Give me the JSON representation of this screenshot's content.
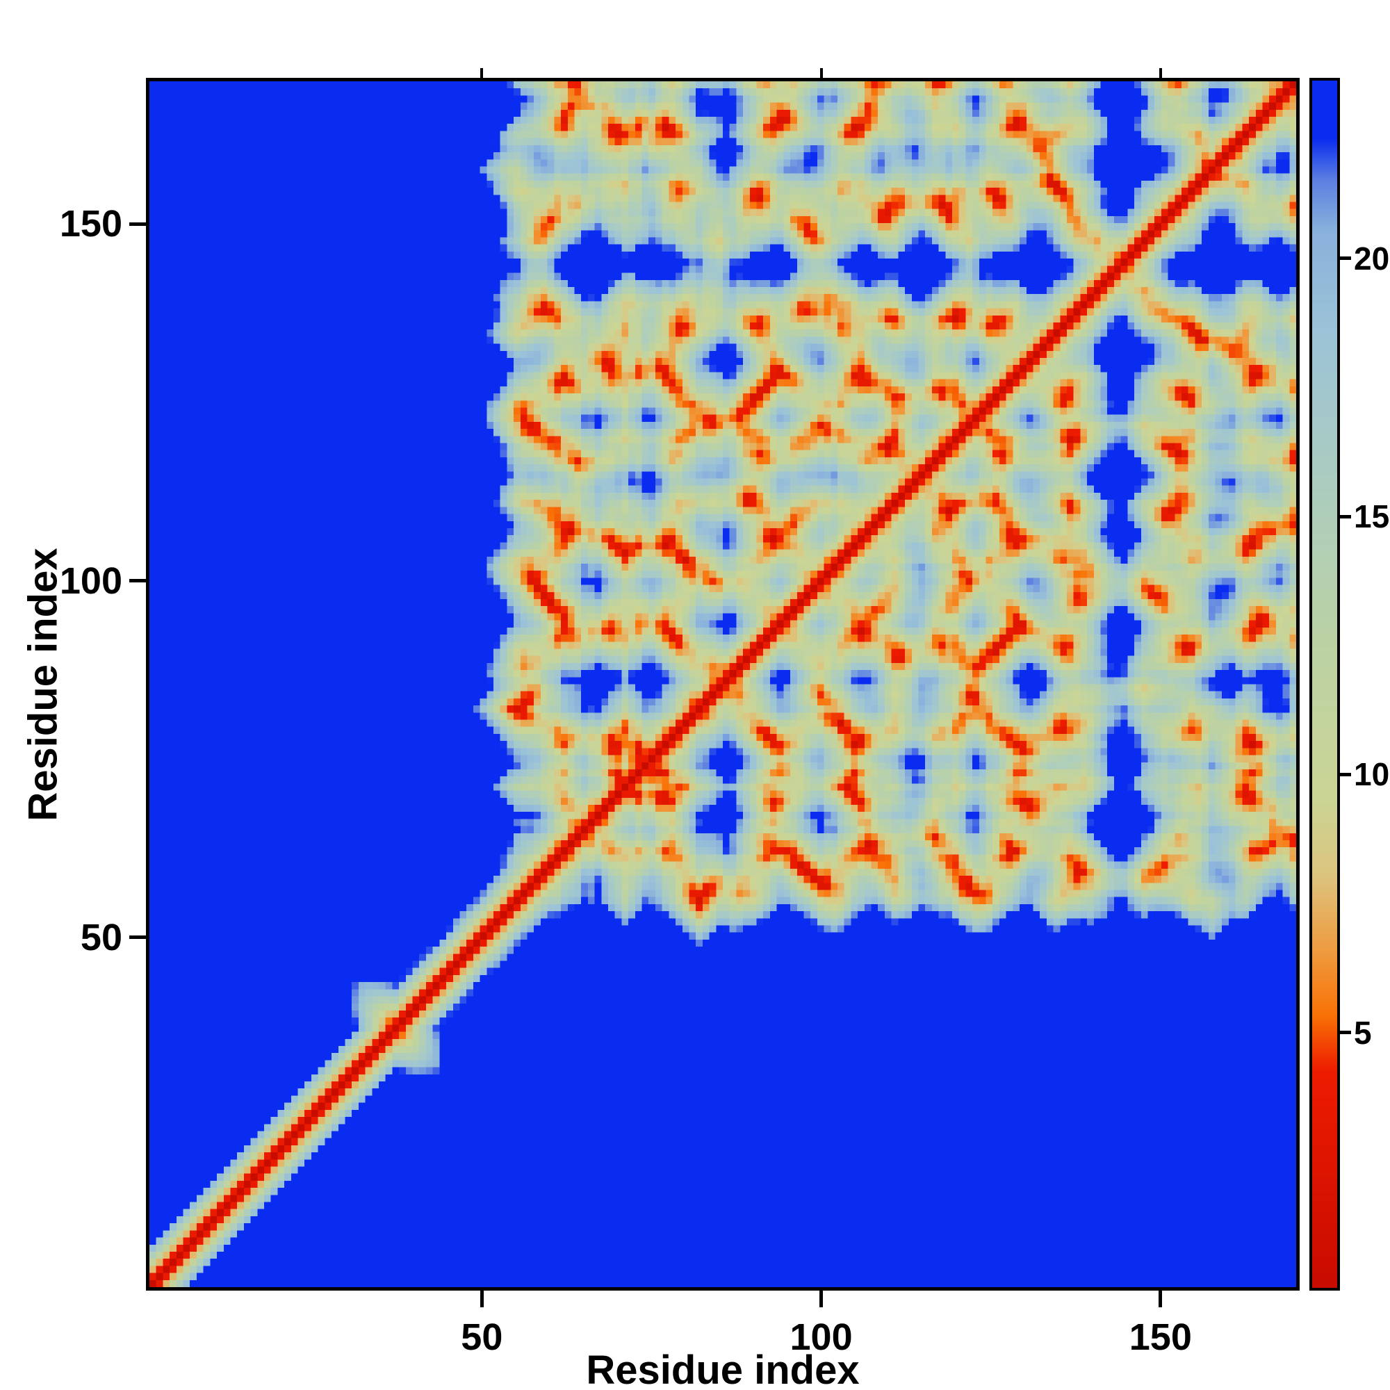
{
  "chart_data": {
    "type": "heatmap",
    "title": "",
    "xlabel": "Residue index",
    "ylabel": "Residue index",
    "x_range": [
      1,
      170
    ],
    "y_range": [
      1,
      170
    ],
    "x_ticks": [
      50,
      100,
      150
    ],
    "y_ticks": [
      50,
      100,
      150
    ],
    "grid": false,
    "n_residues": 170,
    "matrix_description": "Symmetric pairwise residue-residue distance map: red along the diagonal (short distances), orange/green for mid-range contacts, deep blue where distances reach the color-scale cap; the first ~36 residues form an extended tail that is distant from the globular domain (solid blue band at low indices).",
    "colorbar": {
      "position": "right",
      "orientation": "vertical",
      "vmin": 0,
      "vmax": 23.5,
      "ticks": [
        5,
        10,
        15,
        20
      ]
    },
    "colormap_stops": [
      {
        "v": 0.0,
        "color": "#c90c00"
      },
      {
        "v": 4.2,
        "color": "#ee1c00"
      },
      {
        "v": 5.3,
        "color": "#f97207"
      },
      {
        "v": 6.5,
        "color": "#f09a3e"
      },
      {
        "v": 8.0,
        "color": "#ddc47e"
      },
      {
        "v": 9.5,
        "color": "#cbd595"
      },
      {
        "v": 12.5,
        "color": "#bcd2a4"
      },
      {
        "v": 15.5,
        "color": "#adcdbe"
      },
      {
        "v": 18.5,
        "color": "#9dc4d6"
      },
      {
        "v": 20.6,
        "color": "#8ab2dc"
      },
      {
        "v": 21.6,
        "color": "#5c7fe2"
      },
      {
        "v": 22.4,
        "color": "#0a2cf0"
      },
      {
        "v": 23.5,
        "color": "#0a2cf0"
      }
    ],
    "synthesis": {
      "seed": 9,
      "step_length": 3.8,
      "extended_tail_residues": 36,
      "tail_turn": 0.14,
      "globule_turn": 1.0,
      "confinement": 0.05,
      "start": [
        128,
        6,
        -4
      ],
      "start_dir": [
        -1,
        0.05,
        0.03
      ]
    }
  }
}
